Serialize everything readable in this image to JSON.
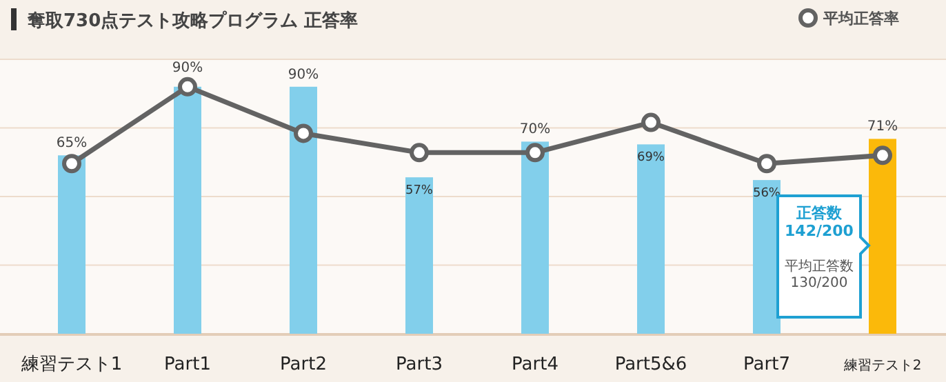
{
  "chart_data": {
    "type": "bar",
    "title": "奪取730点テスト攻略プログラム 正答率",
    "categories": [
      "練習テスト1",
      "Part1",
      "Part2",
      "Part3",
      "Part4",
      "Part5&6",
      "Part7",
      "練習テスト2"
    ],
    "series": [
      {
        "type": "bar",
        "colors": [
          "#82cfeb",
          "#82cfeb",
          "#82cfeb",
          "#82cfeb",
          "#82cfeb",
          "#82cfeb",
          "#82cfeb",
          "#fbb90a"
        ],
        "values": [
          65,
          90,
          90,
          57,
          70,
          69,
          56,
          71
        ],
        "value_labels": [
          "65%",
          "90%",
          "90%",
          "57%",
          "70%",
          "69%",
          "56%",
          "71%"
        ]
      },
      {
        "type": "line",
        "name": "平均正答率",
        "color": "#636363",
        "values": [
          62,
          90,
          73,
          66,
          66,
          77,
          62,
          65
        ]
      }
    ],
    "marker": "circle",
    "line_style": "solid",
    "ylim": [
      0,
      100
    ],
    "yticks": [
      {
        "value": 25,
        "label": null
      },
      {
        "value": 50,
        "label": null
      },
      {
        "value": 75,
        "label": null
      },
      {
        "value": 100,
        "label": null
      }
    ],
    "tick_labels": "x",
    "grid": "y",
    "legend": "top right",
    "annotations": [
      "正答数\n142/200",
      "平均正答数\n130/200"
    ]
  }
}
